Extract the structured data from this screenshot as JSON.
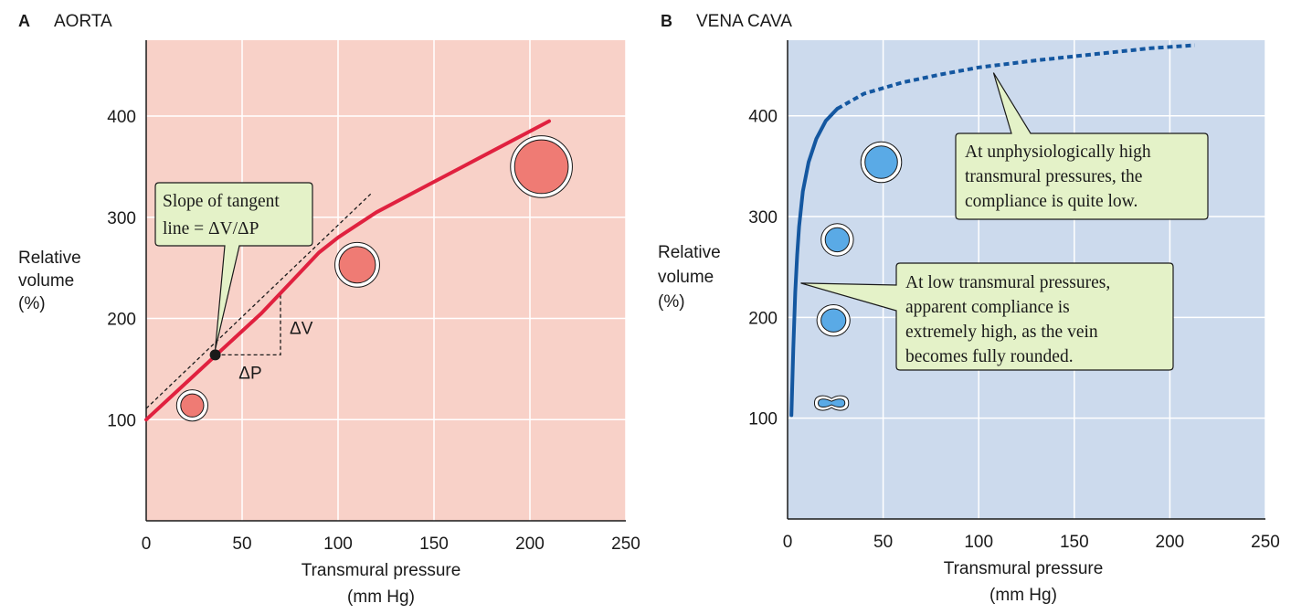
{
  "chart_data": [
    {
      "type": "line",
      "panel_letter": "A",
      "title": "AORTA",
      "xlabel": [
        "Transmural pressure",
        "(mm Hg)"
      ],
      "ylabel": [
        "Relative",
        "volume",
        "(%)"
      ],
      "xlim": [
        0,
        250
      ],
      "ylim": [
        0,
        475
      ],
      "x_ticks": [
        0,
        50,
        100,
        150,
        200,
        250
      ],
      "y_ticks": [
        100,
        200,
        300,
        400
      ],
      "grid": true,
      "colors": {
        "background": "#f8d1c8",
        "grid": "#ffffff",
        "line": "#e0213f",
        "vessel": "#ef7b74"
      },
      "series": [
        {
          "x": [
            0,
            20,
            40,
            60,
            80,
            90,
            100,
            120,
            150,
            180,
            210
          ],
          "y": [
            100,
            135,
            170,
            205,
            245,
            265,
            280,
            305,
            335,
            365,
            395
          ]
        }
      ],
      "tangent": {
        "x": [
          0,
          117
        ],
        "y": [
          111,
          323
        ],
        "point": [
          36,
          164
        ]
      },
      "delta_triangle": {
        "x0": 36,
        "x1": 70,
        "y0": 164,
        "y1": 225
      },
      "vessels": [
        {
          "x": 24,
          "y": 114,
          "rx_units": 6,
          "ry_units": 12,
          "shape": "circle"
        },
        {
          "x": 110,
          "y": 253,
          "rx_units": 9.5,
          "ry_units": 18,
          "shape": "circle"
        },
        {
          "x": 206,
          "y": 350,
          "rx_units": 14,
          "ry_units": 26.5,
          "shape": "circle"
        }
      ],
      "annotations": [
        {
          "lines": [
            "Slope of tangent",
            "line = ΔV/ΔP"
          ],
          "target": [
            36,
            164
          ]
        }
      ],
      "delta_labels": {
        "dv": "ΔV",
        "dp": "ΔP"
      }
    },
    {
      "type": "line",
      "panel_letter": "B",
      "title": "VENA CAVA",
      "xlabel": [
        "Transmural pressure",
        "(mm Hg)"
      ],
      "ylabel": [
        "Relative",
        "volume",
        "(%)"
      ],
      "xlim": [
        0,
        250
      ],
      "ylim": [
        0,
        475
      ],
      "x_ticks": [
        0,
        50,
        100,
        150,
        200,
        250
      ],
      "y_ticks": [
        100,
        200,
        300,
        400
      ],
      "grid": true,
      "colors": {
        "background": "#ccdaed",
        "grid": "#ffffff",
        "line": "#1457a0",
        "vessel": "#5aaae6"
      },
      "series": [
        {
          "style": "solid",
          "x": [
            2,
            3,
            4,
            5,
            6,
            8,
            11,
            15,
            20,
            26
          ],
          "y": [
            103,
            170,
            225,
            262,
            290,
            325,
            354,
            377,
            395,
            407
          ]
        },
        {
          "style": "dashed",
          "x": [
            26,
            40,
            60,
            80,
            100,
            130,
            160,
            190,
            213
          ],
          "y": [
            407,
            422,
            433,
            441,
            448,
            455,
            461,
            467,
            470
          ]
        }
      ],
      "vessels": [
        {
          "x": 49,
          "y": 354,
          "rx_units": 8.5,
          "ry_units": 31,
          "shape": "circle"
        },
        {
          "x": 26,
          "y": 277,
          "rx_units": 6.3,
          "ry_units": 23,
          "shape": "circle"
        },
        {
          "x": 24,
          "y": 197,
          "rx_units": 6.5,
          "ry_units": 11.5,
          "shape": "ellipse"
        },
        {
          "x": 23,
          "y": 115,
          "rx_units": 7,
          "ry_units": 5,
          "shape": "flat"
        }
      ],
      "annotations": [
        {
          "lines": [
            "At unphysiologically high",
            "transmural pressures, the",
            "compliance is quite low."
          ],
          "target": [
            113,
            450
          ]
        },
        {
          "lines": [
            "At low transmural pressures,",
            "apparent compliance is",
            "extremely high, as the vein",
            "becomes fully rounded."
          ],
          "target": [
            6,
            234
          ]
        }
      ]
    }
  ]
}
